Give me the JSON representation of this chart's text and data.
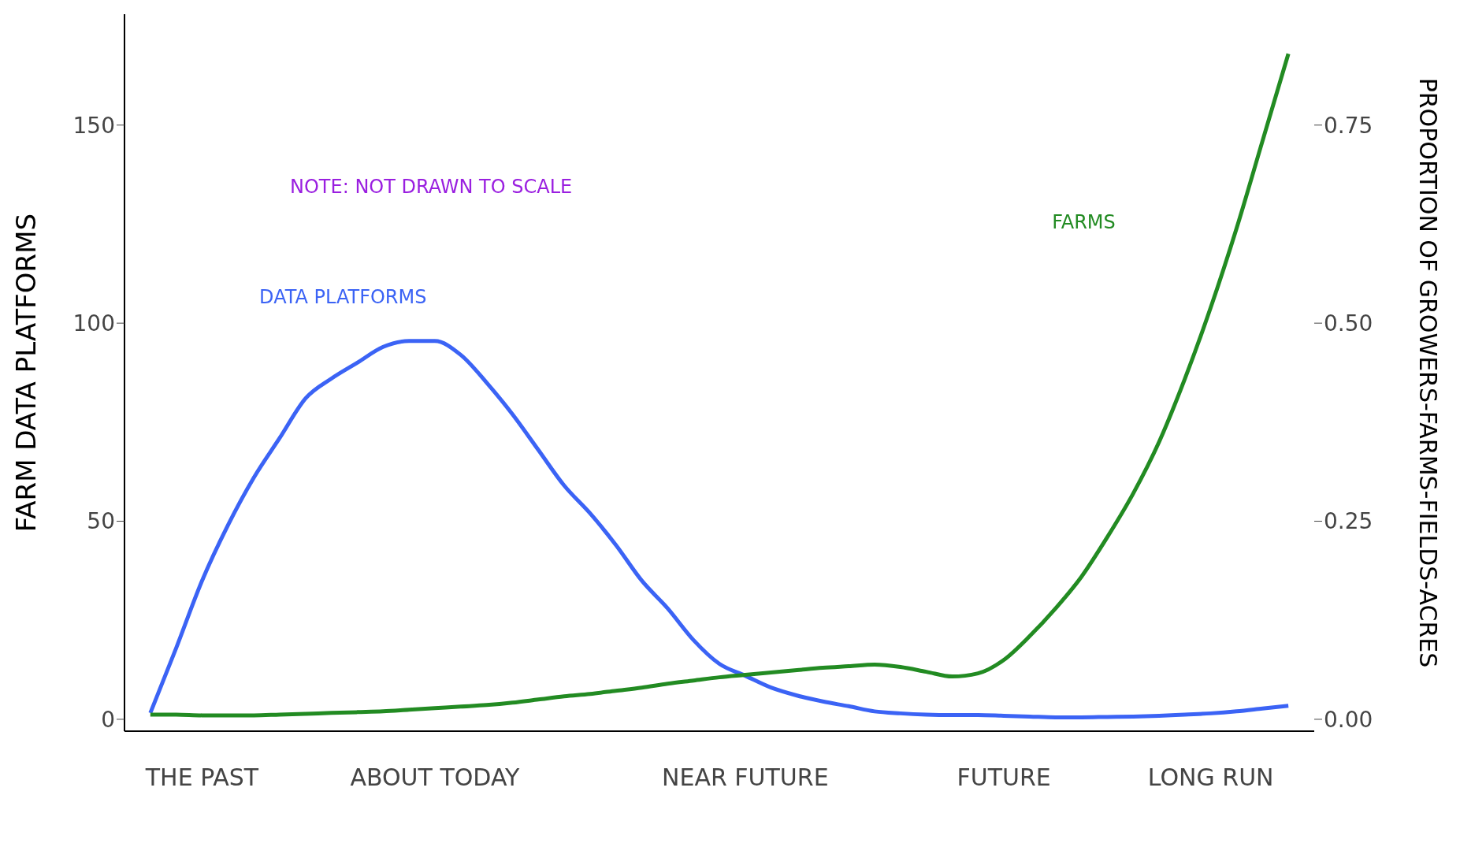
{
  "chart_data": {
    "type": "line",
    "ylabel": "FARM DATA PLATFORMS",
    "y2label": "PROPORTION OF GROWERS-FARMS-FIELDS-ACRES",
    "annotations": [
      "NOTE: NOT DRAWN TO SCALE"
    ],
    "categories": [
      null,
      null,
      "THE PAST",
      null,
      null,
      null,
      null,
      null,
      null,
      null,
      null,
      "ABOUT TODAY",
      null,
      null,
      null,
      null,
      null,
      null,
      null,
      null,
      null,
      null,
      null,
      "NEAR FUTURE",
      null,
      null,
      null,
      null,
      null,
      null,
      null,
      null,
      null,
      "FUTURE",
      null,
      null,
      null,
      null,
      null,
      null,
      null,
      "LONG RUN",
      null,
      null,
      null
    ],
    "ylim": [
      -3,
      178
    ],
    "yticks": [
      0,
      50,
      100,
      150
    ],
    "y2lim": [
      -0.015,
      0.89
    ],
    "y2ticks": [
      {
        "value": 0,
        "label": "0.00"
      },
      {
        "value": 0.25,
        "label": "0.25"
      },
      {
        "value": 0.5,
        "label": "0.50"
      },
      {
        "value": 0.75,
        "label": "0.75"
      }
    ],
    "grid": false,
    "legend": false,
    "marker": "none",
    "line_style": "solid",
    "series": [
      {
        "name": "DATA PLATFORMS",
        "color": "#3b63f5",
        "values": [
          1.6,
          18,
          35,
          49,
          61,
          71,
          81,
          86,
          90,
          94,
          95.5,
          95.5,
          92,
          85,
          77,
          68,
          59,
          52,
          44,
          35,
          28,
          20,
          14,
          11,
          8,
          6,
          4.5,
          3.3,
          2,
          1.5,
          1.2,
          1.1,
          1.1,
          0.9,
          0.7,
          0.5,
          0.5,
          0.6,
          0.7,
          0.9,
          1.2,
          1.5,
          2,
          2.7,
          3.4
        ]
      },
      {
        "name": "FARMS",
        "color": "#228b22",
        "axis": "y2",
        "values": [
          0.006,
          0.006,
          0.005,
          0.005,
          0.005,
          0.006,
          0.007,
          0.008,
          0.009,
          0.01,
          0.012,
          0.014,
          0.016,
          0.018,
          0.021,
          0.025,
          0.029,
          0.032,
          0.036,
          0.04,
          0.045,
          0.049,
          0.053,
          0.056,
          0.059,
          0.062,
          0.065,
          0.067,
          0.069,
          0.066,
          0.06,
          0.054,
          0.058,
          0.075,
          0.105,
          0.14,
          0.18,
          0.23,
          0.285,
          0.35,
          0.43,
          0.52,
          0.62,
          0.73,
          0.84
        ]
      }
    ]
  }
}
